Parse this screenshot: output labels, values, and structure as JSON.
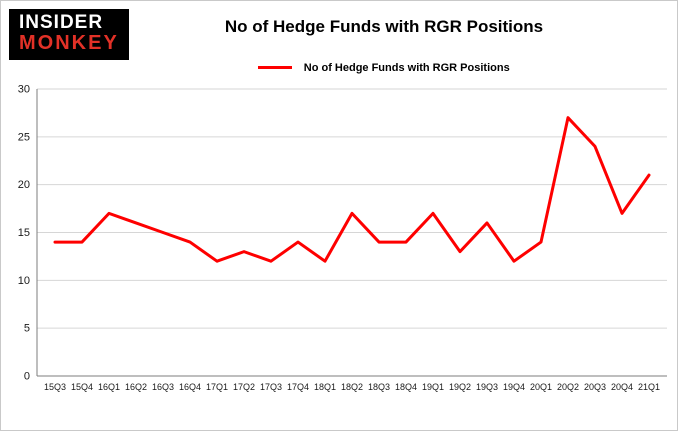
{
  "logo": {
    "line1": "INSIDER",
    "line2": "MONKEY"
  },
  "header": {
    "title": "No of Hedge Funds with RGR Positions"
  },
  "legend": {
    "label": "No of Hedge Funds with RGR Positions"
  },
  "colors": {
    "line": "#fe0000",
    "grid": "#d6d6d6",
    "axis": "#7d7d7d",
    "logo_bg": "#000000",
    "logo_red": "#e23127",
    "background": "#ffffff"
  },
  "chart_data": {
    "type": "line",
    "title": "No of Hedge Funds with RGR Positions",
    "xlabel": "",
    "ylabel": "",
    "categories": [
      "15Q3",
      "15Q4",
      "16Q1",
      "16Q2",
      "16Q3",
      "16Q4",
      "17Q1",
      "17Q2",
      "17Q3",
      "17Q4",
      "18Q1",
      "18Q2",
      "18Q3",
      "18Q4",
      "19Q1",
      "19Q2",
      "19Q3",
      "19Q4",
      "20Q1",
      "20Q2",
      "20Q3",
      "20Q4",
      "21Q1"
    ],
    "series": [
      {
        "name": "No of Hedge Funds with RGR Positions",
        "values": [
          14,
          14,
          17,
          16,
          15,
          14,
          12,
          13,
          12,
          14,
          12,
          17,
          14,
          14,
          17,
          13,
          16,
          12,
          14,
          27,
          24,
          17,
          21
        ]
      }
    ],
    "ylim": [
      0,
      30
    ],
    "yticks": [
      0,
      5,
      10,
      15,
      20,
      25,
      30
    ],
    "grid": "horizontal",
    "legend_position": "top-center",
    "line_color": "#fe0000"
  }
}
